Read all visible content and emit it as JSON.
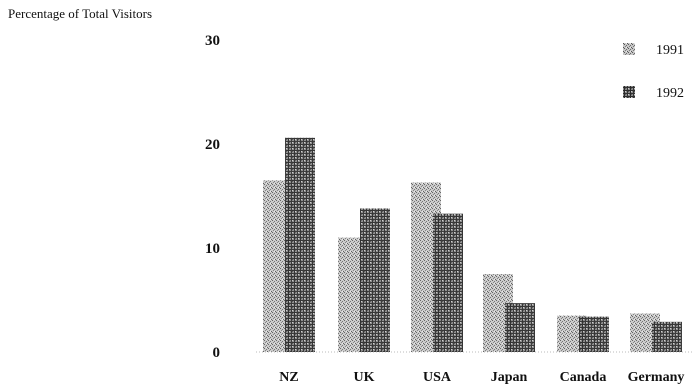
{
  "chart_data": {
    "type": "bar",
    "title": "",
    "ylabel": "Percentage of Total Visitors",
    "xlabel": "",
    "ylim": [
      0,
      30
    ],
    "yticks": [
      0,
      10,
      20,
      30
    ],
    "categories": [
      "NZ",
      "UK",
      "USA",
      "Japan",
      "Canada",
      "Germany"
    ],
    "series": [
      {
        "name": "1991",
        "values": [
          16.5,
          11,
          16.3,
          7.5,
          3.5,
          3.7
        ],
        "color": "#9a9a9a",
        "pattern": "stipple-light"
      },
      {
        "name": "1992",
        "values": [
          20.6,
          13.8,
          13.3,
          4.7,
          3.4,
          2.9
        ],
        "color": "#4a4a4a",
        "pattern": "crosshatch-dark"
      }
    ],
    "legend_position": "top-right",
    "grid": false
  }
}
